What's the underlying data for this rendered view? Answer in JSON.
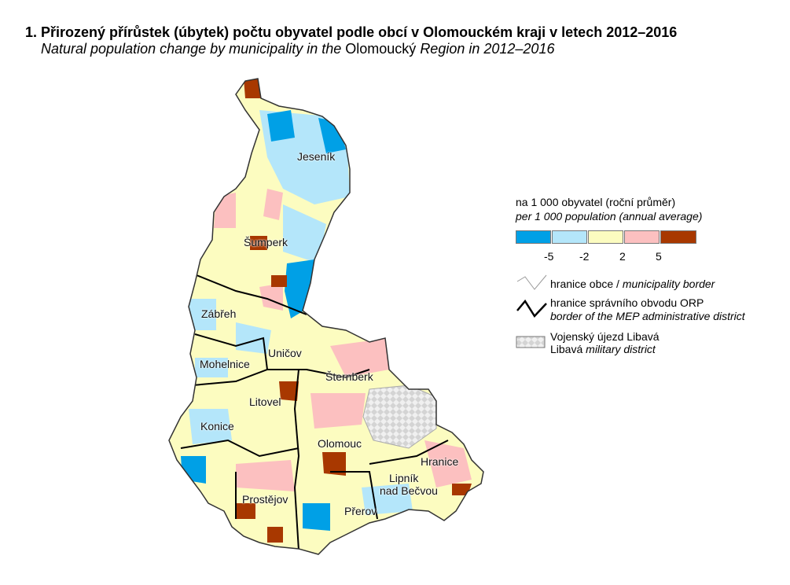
{
  "title": "1. Přirozený přírůstek (úbytek) počtu obyvatel podle obcí v Olomouckém kraji v letech 2012–2016",
  "subtitle": {
    "italic_1": "Natural population change by municipality in the",
    "regular": "Olomoucký",
    "italic_2": "Region in 2012–2016"
  },
  "legend": {
    "heading": "na 1 000 obyvatel (roční průměr)",
    "heading_en": "per 1 000 population (annual average)",
    "colors": [
      "#00a0e6",
      "#b4e6fa",
      "#fcfcc0",
      "#fcc0c0",
      "#a83800"
    ],
    "breaks": [
      "-5",
      "-2",
      "2",
      "5"
    ],
    "municipality_border": {
      "cz": "hranice obce /",
      "en": "municipality border"
    },
    "mep_border": {
      "cz": "hranice správního obvodu ORP",
      "en": "border of the MEP administrative district"
    },
    "military": {
      "cz": "Vojenský újezd Libavá",
      "en_regular": "Libavá",
      "en_italic": "military district"
    }
  },
  "cities": [
    "Jeseník",
    "Šumperk",
    "Zábřeh",
    "Uničov",
    "Mohelnice",
    "Šternberk",
    "Litovel",
    "Konice",
    "Olomouc",
    "Hranice",
    "Lipník",
    "nad Bečvou",
    "Prostějov",
    "Přerov"
  ]
}
